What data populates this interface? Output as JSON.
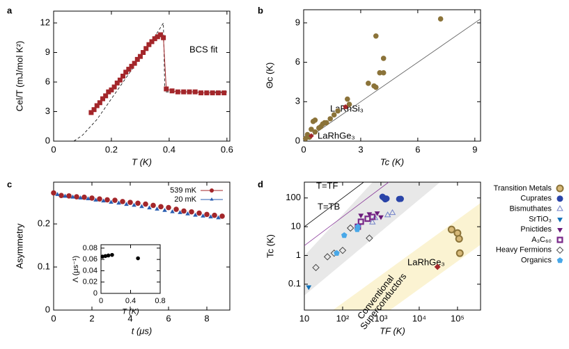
{
  "chart_data": [
    {
      "type": "scatter",
      "panel_label": "a",
      "xlabel": "T (K)",
      "ylabel": "Cel/T (mJ/mol K²)",
      "xlim": [
        0,
        0.61
      ],
      "ylim": [
        0,
        13.2
      ],
      "xticks": [
        0,
        0.2,
        0.4,
        0.6
      ],
      "yticks": [
        0,
        3,
        6,
        9,
        12
      ],
      "annotations": [
        "BCS fit"
      ],
      "series": [
        {
          "color": "#000000",
          "line": "dashed",
          "marker": "none",
          "x": [
            0.07,
            0.1,
            0.15,
            0.2,
            0.25,
            0.3,
            0.35,
            0.38,
            0.385,
            0.39,
            0.6
          ],
          "values": [
            0,
            0.6,
            2.2,
            4.3,
            6.4,
            8.5,
            10.6,
            12,
            5,
            5,
            5
          ]
        },
        {
          "color": "#a3262a",
          "line": "solid",
          "marker": "square",
          "x": [
            0.13,
            0.14,
            0.15,
            0.16,
            0.17,
            0.18,
            0.19,
            0.2,
            0.21,
            0.22,
            0.23,
            0.24,
            0.25,
            0.26,
            0.27,
            0.28,
            0.29,
            0.3,
            0.31,
            0.32,
            0.33,
            0.34,
            0.35,
            0.36,
            0.37,
            0.38,
            0.39,
            0.41,
            0.43,
            0.45,
            0.47,
            0.49,
            0.51,
            0.53,
            0.55,
            0.57,
            0.59
          ],
          "values": [
            2.9,
            3.2,
            3.6,
            3.9,
            4.3,
            4.6,
            5.0,
            5.2,
            5.5,
            5.9,
            6.2,
            6.6,
            7.0,
            7.3,
            7.6,
            7.9,
            8.3,
            8.6,
            9.0,
            9.4,
            9.8,
            10.1,
            10.4,
            10.6,
            10.8,
            10.5,
            5.3,
            5.1,
            5.0,
            5.0,
            5.0,
            5.0,
            4.9,
            4.9,
            4.9,
            4.9,
            4.9
          ]
        }
      ]
    },
    {
      "type": "scatter",
      "panel_label": "b",
      "xlabel": "Tc (K)",
      "ylabel": "Θc (K)",
      "xlim": [
        0,
        9.3
      ],
      "ylim": [
        0,
        10
      ],
      "xticks": [
        0,
        3,
        6,
        9
      ],
      "yticks": [
        0,
        3,
        6,
        9
      ],
      "annotations": [
        "LaRhSi₃",
        "LaRhGe₃"
      ],
      "series": [
        {
          "color": "#555555",
          "line": "solid",
          "marker": "none",
          "x": [
            0,
            9.3
          ],
          "values": [
            0,
            9.3
          ]
        },
        {
          "color": "#8b7339",
          "marker": "circle",
          "x": [
            0.1,
            0.2,
            0.3,
            0.4,
            0.5,
            0.6,
            0.6,
            0.8,
            0.9,
            1.0,
            1.1,
            1.2,
            1.4,
            1.6,
            1.8,
            2.3,
            2.4,
            3.4,
            3.7,
            3.8,
            3.8,
            4.0,
            4.2,
            4.2,
            7.2
          ],
          "values": [
            0.2,
            0.5,
            0.3,
            0.9,
            1.5,
            1.6,
            0.7,
            1.0,
            1.1,
            1.3,
            1.4,
            1.4,
            1.7,
            2.0,
            2.3,
            3.2,
            2.8,
            4.4,
            4.2,
            4.1,
            8.0,
            5.2,
            5.2,
            6.3,
            9.3
          ]
        },
        {
          "color": "#a3262a",
          "marker": "pentagon",
          "x": [
            2.2
          ],
          "values": [
            2.6
          ]
        },
        {
          "color": "#a3262a",
          "marker": "diamond",
          "x": [
            0.4
          ],
          "values": [
            0.4
          ]
        }
      ]
    },
    {
      "type": "scatter",
      "panel_label": "c",
      "xlabel": "t (μs)",
      "ylabel": "Asymmetry",
      "xlim": [
        0,
        9.2
      ],
      "ylim": [
        0,
        0.297
      ],
      "xticks": [
        0,
        2,
        4,
        6,
        8
      ],
      "yticks": [
        0,
        0.1,
        0.2
      ],
      "legend": "upper right",
      "series": [
        {
          "name": "539 mK",
          "color": "#a3262a",
          "marker": "circle",
          "x": [
            0,
            0.4,
            0.8,
            1.2,
            1.6,
            2.0,
            2.4,
            2.8,
            3.2,
            3.6,
            4.0,
            4.4,
            4.8,
            5.2,
            5.6,
            6.0,
            6.4,
            6.8,
            7.2,
            7.6,
            8.0,
            8.4,
            8.8
          ],
          "values": [
            0.272,
            0.266,
            0.265,
            0.263,
            0.262,
            0.26,
            0.258,
            0.256,
            0.255,
            0.252,
            0.25,
            0.248,
            0.246,
            0.243,
            0.24,
            0.238,
            0.234,
            0.23,
            0.228,
            0.225,
            0.222,
            0.22,
            0.218
          ]
        },
        {
          "name": "20 mK",
          "color": "#2a5db0",
          "marker": "triangle-up",
          "x": [
            0.2,
            0.6,
            1.0,
            1.4,
            1.8,
            2.2,
            2.6,
            3.0,
            3.4,
            3.8,
            4.2,
            4.6,
            5.0,
            5.4,
            5.8,
            6.2,
            6.6,
            7.0,
            7.4,
            7.8,
            8.2,
            8.6
          ],
          "values": [
            0.268,
            0.264,
            0.262,
            0.26,
            0.258,
            0.255,
            0.253,
            0.25,
            0.248,
            0.245,
            0.243,
            0.24,
            0.237,
            0.234,
            0.231,
            0.228,
            0.226,
            0.223,
            0.22,
            0.218,
            0.216,
            0.214
          ]
        }
      ]
    },
    {
      "type": "scatter",
      "xlabel": "T (K)",
      "ylabel": "Λ (μs⁻¹)",
      "xlim": [
        0,
        0.8
      ],
      "ylim": [
        0,
        0.086
      ],
      "xticks": [
        0,
        0.4,
        0.8
      ],
      "yticks": [
        0,
        0.02,
        0.04,
        0.06,
        0.08
      ],
      "series": [
        {
          "color": "#000000",
          "marker": "circle",
          "x": [
            0.02,
            0.06,
            0.1,
            0.15,
            0.5
          ],
          "values": [
            0.065,
            0.066,
            0.067,
            0.068,
            0.062
          ]
        }
      ]
    },
    {
      "type": "scatter",
      "panel_label": "d",
      "xlabel": "TF (K)",
      "ylabel": "Tc (K)",
      "xlog": true,
      "ylog": true,
      "xlim": [
        10,
        400000
      ],
      "ylim": [
        0.0126,
        355
      ],
      "xticks": [
        10,
        {
          "value": 100,
          "label": "10²"
        },
        {
          "value": 1000,
          "label": "10³"
        },
        {
          "value": 10000,
          "label": "10⁴"
        },
        {
          "value": 100000,
          "label": "10⁵"
        }
      ],
      "yticks": [
        0.1,
        1,
        10,
        100
      ],
      "legend": "outside right",
      "annotations": [
        "T=TF",
        "T=TB",
        "LaRhGe₃",
        "Conventional",
        "Superconductors"
      ],
      "series": [
        {
          "color": "#000000",
          "line": "solid",
          "marker": "none",
          "x": [
            10,
            355
          ],
          "values": [
            10,
            355
          ]
        },
        {
          "color": "#8a3a9a",
          "line": "solid",
          "marker": "none",
          "x": [
            10,
            1600
          ],
          "values": [
            2.2,
            355
          ]
        },
        {
          "name": "Transition Metals",
          "color": "#8b7339",
          "marker": "checker-circle",
          "x": [
            70000,
            100000,
            110000,
            115000
          ],
          "values": [
            8,
            6,
            3.8,
            1.2
          ]
        },
        {
          "name": "Cuprates",
          "color": "#2a44a8",
          "marker": "circle",
          "x": [
            1100,
            1200,
            1300,
            1400,
            3000,
            3300
          ],
          "values": [
            110,
            100,
            90,
            95,
            92,
            93
          ]
        },
        {
          "name": "Bismuthates",
          "color": "#7080c8",
          "marker": "open-triangle-up",
          "x": [
            600,
            700,
            1500,
            2000
          ],
          "values": [
            14,
            20,
            25,
            30
          ]
        },
        {
          "name": "SrTiO₃",
          "color": "#1070b8",
          "marker": "triangle-down",
          "x": [
            13
          ],
          "values": [
            0.08
          ]
        },
        {
          "name": "Pnictides",
          "color": "#6a1b7a",
          "marker": "triangle-down",
          "x": [
            300,
            500,
            800,
            1000
          ],
          "values": [
            25,
            28,
            30,
            22
          ]
        },
        {
          "name": "A₃C₆₀",
          "color": "#7a2a8a",
          "marker": "checker-square",
          "x": [
            250,
            300,
            450,
            600
          ],
          "values": [
            10,
            15,
            19,
            22
          ]
        },
        {
          "name": "Heavy Fermions",
          "color": "#444444",
          "marker": "open-diamond",
          "x": [
            20,
            40,
            60,
            100,
            160,
            500
          ],
          "values": [
            0.38,
            0.9,
            1.2,
            1.5,
            9,
            4
          ]
        },
        {
          "name": "Organics",
          "color": "#49a8e8",
          "marker": "pentagon",
          "x": [
            70,
            110,
            240,
            250
          ],
          "values": [
            1.2,
            5,
            8,
            10
          ]
        },
        {
          "color": "#a3262a",
          "marker": "diamond",
          "x": [
            30000
          ],
          "values": [
            0.4
          ]
        }
      ]
    }
  ]
}
